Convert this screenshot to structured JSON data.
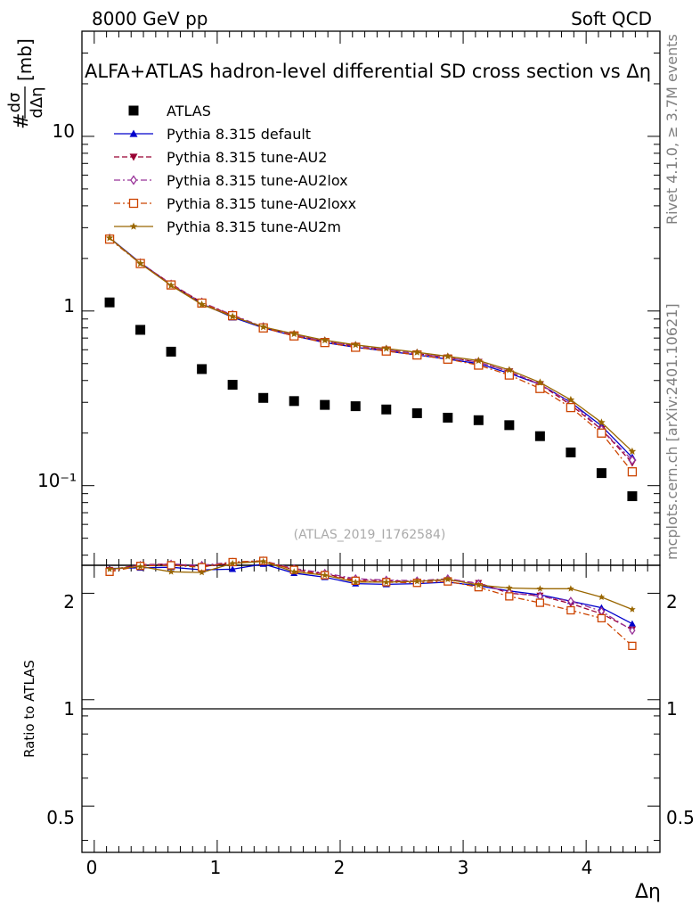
{
  "header": {
    "left": "8000 GeV pp",
    "right": "Soft QCD"
  },
  "side_labels": {
    "rivet": "Rivet 4.1.0, ≥ 3.7M events",
    "mcplots": "mcplots.cern.ch [arXiv:2401.10621]"
  },
  "chart_data": {
    "type": "scatter",
    "title": "ALFA+ATLAS hadron-level differential SD cross section vs Δη",
    "ylabel_fraction_top": "dσ",
    "ylabel_fraction_bottom": "dΔη",
    "ylabel_prefix": "#",
    "ylabel_unit": "[mb]",
    "xlabel": "Δη",
    "ratio_ylabel": "Ratio to ATLAS",
    "watermark": "(ATLAS_2019_I1762584)",
    "yscale": "log",
    "ylim": [
      0.035,
      40
    ],
    "xlim": [
      -0.1,
      4.6
    ],
    "ratio_ylim": [
      0.37,
      2.4
    ],
    "x_ticks": [
      "0",
      "1",
      "2",
      "3",
      "4"
    ],
    "y_ticks": [
      "10⁻¹",
      "1",
      "10"
    ],
    "ratio_ticks": [
      "0.5",
      "1",
      "2"
    ],
    "x": [
      0.125,
      0.375,
      0.625,
      0.875,
      1.125,
      1.375,
      1.625,
      1.875,
      2.125,
      2.375,
      2.625,
      2.875,
      3.125,
      3.375,
      3.625,
      3.875,
      4.125,
      4.375
    ],
    "series": [
      {
        "name": "ATLAS",
        "color": "#000000",
        "marker": "square",
        "line": "none",
        "values": [
          1.12,
          0.78,
          0.585,
          0.465,
          0.378,
          0.318,
          0.305,
          0.29,
          0.285,
          0.273,
          0.26,
          0.245,
          0.237,
          0.222,
          0.192,
          0.155,
          0.118,
          0.087
        ],
        "ratio": [
          1,
          1,
          1,
          1,
          1,
          1,
          1,
          1,
          1,
          1,
          1,
          1,
          1,
          1,
          1,
          1,
          1,
          1
        ]
      },
      {
        "name": "Pythia 8.315 default",
        "color": "#0000cc",
        "marker": "triangle-up",
        "line": "solid",
        "values": [
          2.63,
          1.89,
          1.42,
          1.1,
          0.92,
          0.8,
          0.72,
          0.66,
          0.62,
          0.59,
          0.56,
          0.53,
          0.5,
          0.44,
          0.38,
          0.3,
          0.22,
          0.145
        ],
        "ratio": [
          2.35,
          2.36,
          2.37,
          2.33,
          2.34,
          2.42,
          2.28,
          2.22,
          2.13,
          2.12,
          2.13,
          2.15,
          2.1,
          2.03,
          1.98,
          1.9,
          1.82,
          1.64
        ]
      },
      {
        "name": "Pythia 8.315 tune-AU2",
        "color": "#990033",
        "marker": "triangle-down",
        "line": "dash",
        "values": [
          2.61,
          1.88,
          1.43,
          1.12,
          0.94,
          0.81,
          0.73,
          0.67,
          0.63,
          0.6,
          0.57,
          0.54,
          0.51,
          0.45,
          0.38,
          0.29,
          0.21,
          0.135
        ],
        "ratio": [
          2.33,
          2.41,
          2.42,
          2.38,
          2.43,
          2.47,
          2.33,
          2.27,
          2.18,
          2.17,
          2.16,
          2.18,
          2.14,
          2.0,
          1.97,
          1.87,
          1.75,
          1.58
        ]
      },
      {
        "name": "Pythia 8.315 tune-AU2lox",
        "color": "#993399",
        "marker": "diamond-open",
        "line": "dashdot",
        "values": [
          2.6,
          1.88,
          1.42,
          1.12,
          0.95,
          0.81,
          0.73,
          0.67,
          0.63,
          0.6,
          0.57,
          0.54,
          0.51,
          0.45,
          0.38,
          0.3,
          0.21,
          0.14
        ],
        "ratio": [
          2.32,
          2.4,
          2.42,
          2.4,
          2.45,
          2.47,
          2.35,
          2.28,
          2.2,
          2.18,
          2.17,
          2.2,
          2.13,
          2.01,
          1.96,
          1.9,
          1.78,
          1.57
        ]
      },
      {
        "name": "Pythia 8.315 tune-AU2loxx",
        "color": "#cc4400",
        "marker": "square-open",
        "line": "dashdot",
        "values": [
          2.58,
          1.87,
          1.41,
          1.11,
          0.94,
          0.8,
          0.72,
          0.66,
          0.62,
          0.59,
          0.56,
          0.53,
          0.49,
          0.43,
          0.36,
          0.28,
          0.2,
          0.12
        ],
        "ratio": [
          2.3,
          2.39,
          2.4,
          2.37,
          2.45,
          2.47,
          2.33,
          2.25,
          2.17,
          2.15,
          2.14,
          2.16,
          2.08,
          1.96,
          1.88,
          1.79,
          1.7,
          1.42
        ]
      },
      {
        "name": "Pythia 8.315 tune-AU2m",
        "color": "#996600",
        "marker": "star",
        "line": "solid",
        "values": [
          2.62,
          1.87,
          1.4,
          1.09,
          0.93,
          0.81,
          0.74,
          0.68,
          0.64,
          0.61,
          0.58,
          0.55,
          0.52,
          0.46,
          0.39,
          0.31,
          0.23,
          0.157
        ],
        "ratio": [
          2.34,
          2.38,
          2.3,
          2.29,
          2.43,
          2.46,
          2.3,
          2.25,
          2.15,
          2.15,
          2.16,
          2.19,
          2.11,
          2.07,
          2.06,
          2.06,
          1.95,
          1.8
        ]
      }
    ]
  }
}
